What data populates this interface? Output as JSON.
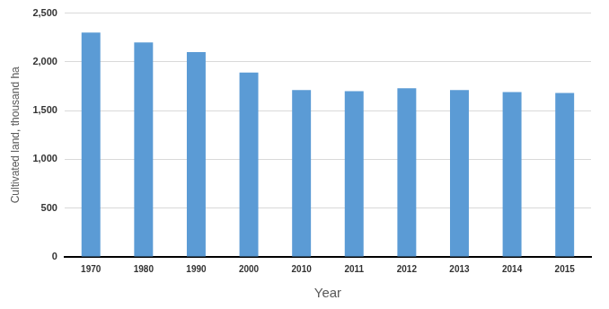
{
  "chart_data": {
    "type": "bar",
    "x_label": "Year",
    "y_label": "Cultivated land, thousand ha",
    "categories": [
      "1970",
      "1980",
      "1990",
      "2000",
      "2010",
      "2011",
      "2012",
      "2013",
      "2014",
      "2015"
    ],
    "values": [
      2300,
      2200,
      2100,
      1890,
      1710,
      1700,
      1730,
      1710,
      1690,
      1680
    ],
    "color": "#5b9bd5",
    "ylim": [
      0,
      2500
    ],
    "yticks": [
      0,
      500,
      {
        "value": 1000,
        "label": "1,000"
      },
      {
        "value": 1500,
        "label": "1,500"
      },
      {
        "value": 2000,
        "label": "2,000"
      },
      {
        "value": 2500,
        "label": "2,500"
      }
    ],
    "grid": true
  }
}
